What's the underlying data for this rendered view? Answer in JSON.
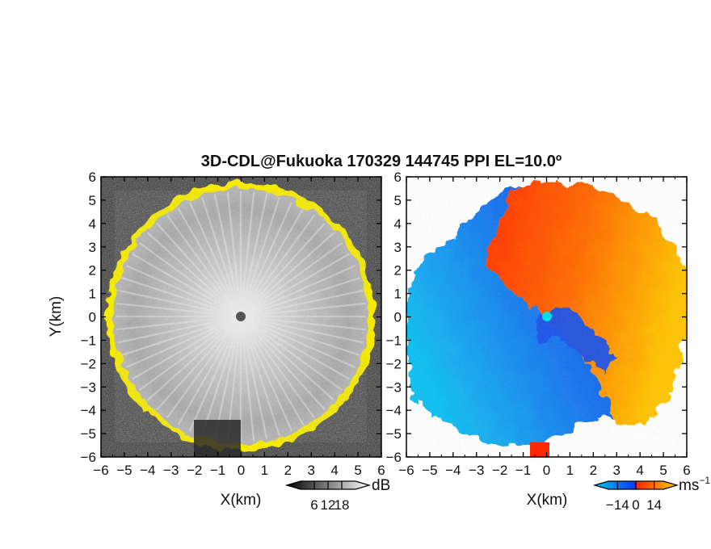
{
  "chart_data": {
    "title": "3D-CDL@Fukuoka 170329 144745 PPI EL=10.0º",
    "panels": [
      {
        "type": "heatmap",
        "quantity": "snr",
        "xlabel": "X(km)",
        "ylabel": "Y(km)",
        "xlim": [
          -6,
          6
        ],
        "ylim": [
          -6,
          6
        ],
        "xticks": [
          "−6",
          "−5",
          "−4",
          "−3",
          "−2",
          "−1",
          "0",
          "1",
          "2",
          "3",
          "4",
          "5",
          "6"
        ],
        "yticks": [
          "6",
          "5",
          "4",
          "3",
          "2",
          "1",
          "0",
          "−1",
          "−2",
          "−3",
          "−4",
          "−5",
          "−6"
        ],
        "range_radius_km": 5.5,
        "colorbar": {
          "unit": "dB",
          "ticks": [
            6,
            12,
            18
          ],
          "tick_labels": [
            "6",
            "12",
            "18"
          ],
          "range": [
            0,
            24
          ],
          "colors": [
            "#000000",
            "#ffffff"
          ]
        }
      },
      {
        "type": "heatmap",
        "quantity": "radial velocity",
        "xlabel": "X(km)",
        "xlim": [
          -6,
          6
        ],
        "ylim": [
          -6,
          6
        ],
        "xticks": [
          "−6",
          "−5",
          "−4",
          "−3",
          "−2",
          "−1",
          "0",
          "1",
          "2",
          "3",
          "4",
          "5",
          "6"
        ],
        "yticks": [
          "6",
          "5",
          "4",
          "3",
          "2",
          "1",
          "0",
          "−1",
          "−2",
          "−3",
          "−4",
          "−5",
          "−6"
        ],
        "range_radius_km": 5.8,
        "colorbar": {
          "unit": "ms",
          "unit_exponent": "−1",
          "ticks": [
            -14,
            0,
            14
          ],
          "tick_labels": [
            "−14",
            "0",
            "14"
          ],
          "range": [
            -21,
            21
          ],
          "colors": [
            "#00c8f0",
            "#0a3cf0",
            "#ff2a00",
            "#ffd200"
          ]
        }
      }
    ],
    "colors": {
      "snr_edge": "#f5ea00",
      "radar_site_left": "#555555",
      "radar_site_right": "#00e0e0"
    }
  }
}
